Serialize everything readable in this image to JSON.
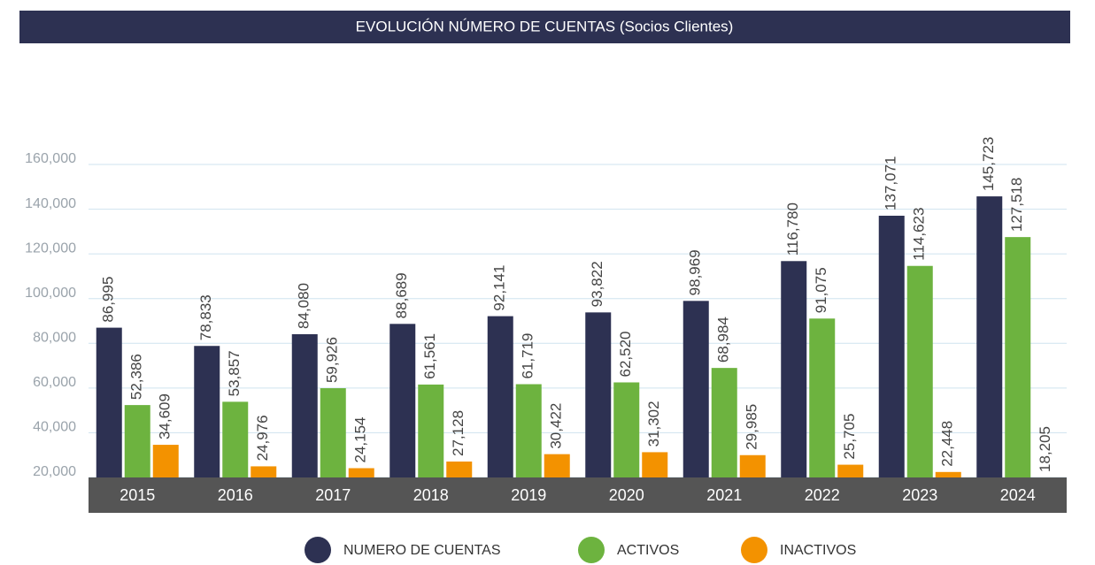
{
  "chart_data": {
    "type": "bar",
    "title": "EVOLUCIÓN NÚMERO DE CUENTAS (Socios Clientes)",
    "categories": [
      "2015",
      "2016",
      "2017",
      "2018",
      "2019",
      "2020",
      "2021",
      "2022",
      "2023",
      "2024"
    ],
    "series": [
      {
        "name": "NUMERO DE CUENTAS",
        "color": "#2d3152",
        "values": [
          86995,
          78833,
          84080,
          88689,
          92141,
          93822,
          98969,
          116780,
          137071,
          145723
        ],
        "value_labels": [
          "86,995",
          "78,833",
          "84,080",
          "88,689",
          "92,141",
          "93,822",
          "98,969",
          "116,780",
          "137,071",
          "145,723"
        ]
      },
      {
        "name": "ACTIVOS",
        "color": "#6db33f",
        "values": [
          52386,
          53857,
          59926,
          61561,
          61719,
          62520,
          68984,
          91075,
          114623,
          127518
        ],
        "value_labels": [
          "52,386",
          "53,857",
          "59,926",
          "61,561",
          "61,719",
          "62,520",
          "68,984",
          "91,075",
          "114,623",
          "127,518"
        ]
      },
      {
        "name": "INACTIVOS",
        "color": "#f39200",
        "values": [
          34609,
          24976,
          24154,
          27128,
          30422,
          31302,
          29985,
          25705,
          22448,
          18205
        ],
        "value_labels": [
          "34,609",
          "24,976",
          "24,154",
          "27,128",
          "30,422",
          "31,302",
          "29,985",
          "25,705",
          "22,448",
          "18,205"
        ]
      }
    ],
    "ylim": [
      20000,
      160000
    ],
    "yticks": [
      {
        "value": 20000,
        "label": "20,000"
      },
      {
        "value": 40000,
        "label": "40,000"
      },
      {
        "value": 60000,
        "label": "60,000"
      },
      {
        "value": 80000,
        "label": "80,000"
      },
      {
        "value": 100000,
        "label": "100,000"
      },
      {
        "value": 120000,
        "label": "120,000"
      },
      {
        "value": 140000,
        "label": "140,000"
      },
      {
        "value": 160000,
        "label": "160,000"
      }
    ],
    "grid": true
  }
}
